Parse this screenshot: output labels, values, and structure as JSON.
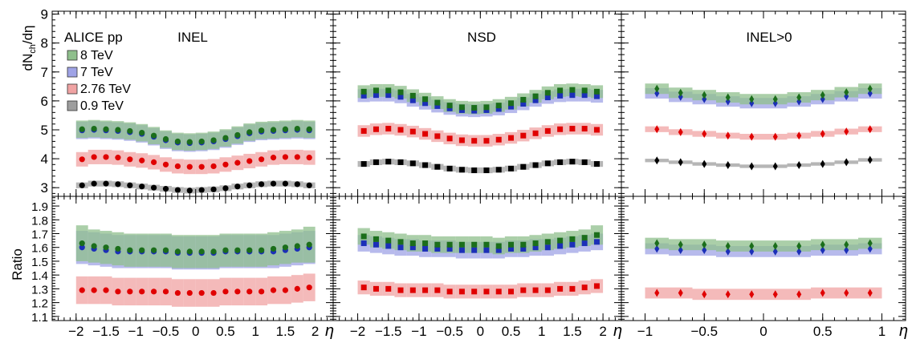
{
  "chart_data": {
    "type": "scatter",
    "experiment_label": "ALICE pp",
    "panels": [
      {
        "name": "INEL",
        "label": "INEL",
        "x_range": [
          -2.4,
          2.3
        ],
        "x_ticks": [
          -2,
          -1.5,
          -1,
          -0.5,
          0,
          0.5,
          1,
          1.5,
          2
        ],
        "x_tick_labels": [
          "−2",
          "−1.5",
          "−1",
          "−0.5",
          "0",
          "0.5",
          "1",
          "1.5",
          "2"
        ],
        "marker": "circle",
        "xlabel": "η"
      },
      {
        "name": "NSD",
        "label": "NSD",
        "x_range": [
          -2.4,
          2.3
        ],
        "x_ticks": [
          -2,
          -1.5,
          -1,
          -0.5,
          0,
          0.5,
          1,
          1.5,
          2
        ],
        "x_tick_labels": [
          "−2",
          "−1.5",
          "−1",
          "−0.5",
          "0",
          "0.5",
          "1",
          "1.5",
          "2"
        ],
        "marker": "square",
        "xlabel": "η"
      },
      {
        "name": "INEL>0",
        "label": "INEL>0",
        "x_range": [
          -1.2,
          1.2
        ],
        "x_ticks": [
          -1,
          -0.5,
          0,
          0.5,
          1
        ],
        "x_tick_labels": [
          "−1",
          "−0.5",
          "0",
          "0.5",
          "1"
        ],
        "marker": "diamond",
        "xlabel": "η"
      }
    ],
    "top": {
      "ylabel": "dN_ch/dη",
      "ylabel_main": "dN",
      "ylabel_sub": "ch",
      "ylabel_tail": "/dη",
      "ylim": [
        2.7,
        9.1
      ],
      "y_ticks": [
        3,
        4,
        5,
        6,
        7,
        8,
        9
      ],
      "y_tick_labels": [
        "3",
        "4",
        "5",
        "6",
        "7",
        "8",
        "9"
      ]
    },
    "bottom": {
      "ylabel": "Ratio",
      "ylim": [
        1.07,
        1.97
      ],
      "y_ticks": [
        1.1,
        1.2,
        1.3,
        1.4,
        1.5,
        1.6,
        1.7,
        1.8,
        1.9
      ],
      "y_tick_labels": [
        "1.1",
        "1.2",
        "1.3",
        "1.4",
        "1.5",
        "1.6",
        "1.7",
        "1.8",
        "1.9"
      ]
    },
    "legend": {
      "placement": "top-left of first panel",
      "entries": [
        {
          "key": "8tev",
          "label": "8 TeV",
          "color": "#8fbf8c"
        },
        {
          "key": "7tev",
          "label": "7 TeV",
          "color": "#9fa3e6"
        },
        {
          "key": "276tev",
          "label": "2.76 TeV",
          "color": "#f0a3a3"
        },
        {
          "key": "09tev",
          "label": "0.9 TeV",
          "color": "#9e9e9e"
        }
      ]
    },
    "series_style": {
      "8tev": {
        "marker_color": "#1b6e1b",
        "band_color": "#8fbf8c"
      },
      "7tev": {
        "marker_color": "#1c2fb8",
        "band_color": "#9fa3e6"
      },
      "276tev": {
        "marker_color": "#e00000",
        "band_color": "#f0a3a3"
      },
      "09tev": {
        "marker_color": "#000000",
        "band_color": "#9e9e9e"
      }
    },
    "eta_wide": [
      -1.9,
      -1.7,
      -1.5,
      -1.3,
      -1.1,
      -0.9,
      -0.7,
      -0.5,
      -0.3,
      -0.1,
      0.1,
      0.3,
      0.5,
      0.7,
      0.9,
      1.1,
      1.3,
      1.5,
      1.7,
      1.9
    ],
    "eta_narrow": [
      -0.9,
      -0.7,
      -0.5,
      -0.3,
      -0.1,
      0.1,
      0.3,
      0.5,
      0.7,
      0.9
    ],
    "series": [
      {
        "panel": 0,
        "row": "top",
        "key": "8tev",
        "values": [
          5.02,
          5.04,
          5.02,
          5.0,
          4.96,
          4.9,
          4.8,
          4.68,
          4.6,
          4.58,
          4.6,
          4.64,
          4.72,
          4.82,
          4.92,
          4.98,
          5.0,
          5.02,
          5.04,
          5.02
        ],
        "err": [
          0.3,
          0.3,
          0.3,
          0.3,
          0.3,
          0.3,
          0.3,
          0.3,
          0.3,
          0.3,
          0.3,
          0.3,
          0.3,
          0.3,
          0.3,
          0.3,
          0.3,
          0.3,
          0.3,
          0.3
        ]
      },
      {
        "panel": 0,
        "row": "top",
        "key": "7tev",
        "values": [
          4.98,
          5.0,
          4.98,
          4.96,
          4.92,
          4.86,
          4.76,
          4.64,
          4.56,
          4.54,
          4.56,
          4.6,
          4.68,
          4.78,
          4.88,
          4.94,
          4.96,
          4.98,
          5.0,
          4.98
        ],
        "err": [
          0.3,
          0.3,
          0.3,
          0.3,
          0.3,
          0.3,
          0.3,
          0.3,
          0.3,
          0.3,
          0.3,
          0.3,
          0.3,
          0.3,
          0.3,
          0.3,
          0.3,
          0.3,
          0.3,
          0.3
        ]
      },
      {
        "panel": 0,
        "row": "top",
        "key": "276tev",
        "values": [
          3.98,
          4.06,
          4.06,
          4.04,
          3.98,
          3.94,
          3.88,
          3.8,
          3.74,
          3.72,
          3.72,
          3.74,
          3.8,
          3.86,
          3.92,
          3.98,
          4.04,
          4.06,
          4.06,
          4.04
        ],
        "err": [
          0.25,
          0.25,
          0.25,
          0.25,
          0.25,
          0.25,
          0.25,
          0.25,
          0.25,
          0.25,
          0.25,
          0.25,
          0.25,
          0.25,
          0.25,
          0.25,
          0.25,
          0.25,
          0.25,
          0.25
        ]
      },
      {
        "panel": 0,
        "row": "top",
        "key": "09tev",
        "values": [
          3.08,
          3.14,
          3.14,
          3.12,
          3.08,
          3.04,
          3.0,
          2.96,
          2.92,
          2.9,
          2.92,
          2.94,
          2.98,
          3.04,
          3.08,
          3.12,
          3.14,
          3.14,
          3.12,
          3.08
        ],
        "err": [
          0.1,
          0.1,
          0.1,
          0.1,
          0.1,
          0.1,
          0.1,
          0.1,
          0.1,
          0.1,
          0.1,
          0.1,
          0.1,
          0.1,
          0.1,
          0.1,
          0.1,
          0.1,
          0.1,
          0.1
        ]
      },
      {
        "panel": 1,
        "row": "top",
        "key": "8tev",
        "values": [
          6.32,
          6.36,
          6.36,
          6.3,
          6.18,
          6.06,
          5.94,
          5.84,
          5.78,
          5.76,
          5.78,
          5.84,
          5.92,
          6.04,
          6.16,
          6.28,
          6.36,
          6.38,
          6.36,
          6.32
        ],
        "err": [
          0.22,
          0.22,
          0.22,
          0.22,
          0.22,
          0.22,
          0.22,
          0.22,
          0.22,
          0.22,
          0.22,
          0.22,
          0.22,
          0.22,
          0.22,
          0.22,
          0.22,
          0.22,
          0.22,
          0.22
        ]
      },
      {
        "panel": 1,
        "row": "top",
        "key": "7tev",
        "values": [
          6.18,
          6.2,
          6.2,
          6.14,
          6.02,
          5.92,
          5.82,
          5.74,
          5.68,
          5.66,
          5.68,
          5.72,
          5.8,
          5.9,
          6.02,
          6.12,
          6.18,
          6.2,
          6.2,
          6.16
        ],
        "err": [
          0.22,
          0.22,
          0.22,
          0.22,
          0.22,
          0.22,
          0.22,
          0.22,
          0.22,
          0.22,
          0.22,
          0.22,
          0.22,
          0.22,
          0.22,
          0.22,
          0.22,
          0.22,
          0.22,
          0.22
        ]
      },
      {
        "panel": 1,
        "row": "top",
        "key": "276tev",
        "values": [
          4.96,
          5.02,
          5.04,
          5.0,
          4.94,
          4.86,
          4.78,
          4.7,
          4.64,
          4.62,
          4.62,
          4.66,
          4.72,
          4.8,
          4.88,
          4.96,
          5.02,
          5.04,
          5.04,
          5.0
        ],
        "err": [
          0.2,
          0.2,
          0.2,
          0.2,
          0.2,
          0.2,
          0.2,
          0.2,
          0.2,
          0.2,
          0.2,
          0.2,
          0.2,
          0.2,
          0.2,
          0.2,
          0.2,
          0.2,
          0.2,
          0.2
        ]
      },
      {
        "panel": 1,
        "row": "top",
        "key": "09tev",
        "values": [
          3.82,
          3.88,
          3.9,
          3.88,
          3.84,
          3.78,
          3.72,
          3.66,
          3.62,
          3.6,
          3.6,
          3.62,
          3.66,
          3.72,
          3.78,
          3.84,
          3.88,
          3.9,
          3.88,
          3.82
        ],
        "err": [
          0.1,
          0.1,
          0.1,
          0.1,
          0.1,
          0.1,
          0.1,
          0.1,
          0.1,
          0.1,
          0.1,
          0.1,
          0.1,
          0.1,
          0.1,
          0.1,
          0.1,
          0.1,
          0.1,
          0.1
        ]
      },
      {
        "panel": 2,
        "row": "top",
        "key": "8tev",
        "values": [
          6.42,
          6.28,
          6.2,
          6.12,
          6.06,
          6.06,
          6.12,
          6.2,
          6.3,
          6.42
        ],
        "err": [
          0.18,
          0.18,
          0.18,
          0.18,
          0.18,
          0.18,
          0.18,
          0.18,
          0.18,
          0.18
        ]
      },
      {
        "panel": 2,
        "row": "top",
        "key": "7tev",
        "values": [
          6.26,
          6.14,
          6.06,
          5.98,
          5.92,
          5.92,
          5.98,
          6.06,
          6.16,
          6.26
        ],
        "err": [
          0.18,
          0.18,
          0.18,
          0.18,
          0.18,
          0.18,
          0.18,
          0.18,
          0.18,
          0.18
        ]
      },
      {
        "panel": 2,
        "row": "top",
        "key": "276tev",
        "values": [
          5.02,
          4.92,
          4.86,
          4.8,
          4.76,
          4.76,
          4.8,
          4.86,
          4.94,
          5.02
        ],
        "err": [
          0.1,
          0.1,
          0.1,
          0.1,
          0.1,
          0.1,
          0.1,
          0.1,
          0.1,
          0.1
        ]
      },
      {
        "panel": 2,
        "row": "top",
        "key": "09tev",
        "values": [
          3.94,
          3.88,
          3.82,
          3.78,
          3.74,
          3.74,
          3.78,
          3.82,
          3.88,
          3.96
        ],
        "err": [
          0.06,
          0.06,
          0.06,
          0.06,
          0.06,
          0.06,
          0.06,
          0.06,
          0.06,
          0.06
        ]
      },
      {
        "panel": 0,
        "row": "bottom",
        "key": "8tev",
        "values": [
          1.63,
          1.61,
          1.6,
          1.59,
          1.58,
          1.58,
          1.58,
          1.58,
          1.57,
          1.57,
          1.57,
          1.57,
          1.58,
          1.58,
          1.58,
          1.58,
          1.59,
          1.6,
          1.61,
          1.62
        ],
        "err": [
          0.13,
          0.12,
          0.12,
          0.12,
          0.12,
          0.12,
          0.12,
          0.12,
          0.12,
          0.12,
          0.12,
          0.12,
          0.12,
          0.12,
          0.12,
          0.12,
          0.12,
          0.12,
          0.12,
          0.13
        ]
      },
      {
        "panel": 0,
        "row": "bottom",
        "key": "7tev",
        "values": [
          1.6,
          1.59,
          1.58,
          1.57,
          1.57,
          1.57,
          1.57,
          1.57,
          1.56,
          1.56,
          1.56,
          1.56,
          1.57,
          1.57,
          1.57,
          1.57,
          1.57,
          1.58,
          1.59,
          1.6
        ],
        "err": [
          0.12,
          0.12,
          0.12,
          0.12,
          0.12,
          0.12,
          0.12,
          0.12,
          0.12,
          0.12,
          0.12,
          0.12,
          0.12,
          0.12,
          0.12,
          0.12,
          0.12,
          0.12,
          0.12,
          0.12
        ]
      },
      {
        "panel": 0,
        "row": "bottom",
        "key": "276tev",
        "values": [
          1.29,
          1.29,
          1.29,
          1.28,
          1.28,
          1.28,
          1.28,
          1.28,
          1.27,
          1.27,
          1.27,
          1.27,
          1.28,
          1.28,
          1.28,
          1.28,
          1.29,
          1.29,
          1.3,
          1.31
        ],
        "err": [
          0.1,
          0.1,
          0.1,
          0.1,
          0.1,
          0.1,
          0.1,
          0.1,
          0.1,
          0.1,
          0.1,
          0.1,
          0.1,
          0.1,
          0.1,
          0.1,
          0.1,
          0.1,
          0.1,
          0.1
        ]
      },
      {
        "panel": 1,
        "row": "bottom",
        "key": "8tev",
        "values": [
          1.68,
          1.66,
          1.65,
          1.64,
          1.63,
          1.63,
          1.62,
          1.62,
          1.62,
          1.62,
          1.62,
          1.61,
          1.62,
          1.62,
          1.63,
          1.64,
          1.65,
          1.66,
          1.67,
          1.69
        ],
        "err": [
          0.06,
          0.06,
          0.06,
          0.06,
          0.06,
          0.06,
          0.06,
          0.06,
          0.06,
          0.06,
          0.06,
          0.06,
          0.06,
          0.06,
          0.06,
          0.06,
          0.06,
          0.06,
          0.06,
          0.07
        ]
      },
      {
        "panel": 1,
        "row": "bottom",
        "key": "7tev",
        "values": [
          1.63,
          1.62,
          1.61,
          1.6,
          1.6,
          1.59,
          1.59,
          1.59,
          1.58,
          1.58,
          1.58,
          1.58,
          1.59,
          1.59,
          1.6,
          1.6,
          1.61,
          1.62,
          1.63,
          1.64
        ],
        "err": [
          0.06,
          0.06,
          0.06,
          0.06,
          0.06,
          0.06,
          0.06,
          0.06,
          0.06,
          0.06,
          0.06,
          0.06,
          0.06,
          0.06,
          0.06,
          0.06,
          0.06,
          0.06,
          0.06,
          0.06
        ]
      },
      {
        "panel": 1,
        "row": "bottom",
        "key": "276tev",
        "values": [
          1.31,
          1.3,
          1.3,
          1.29,
          1.29,
          1.29,
          1.29,
          1.28,
          1.28,
          1.28,
          1.28,
          1.28,
          1.28,
          1.29,
          1.29,
          1.29,
          1.3,
          1.3,
          1.31,
          1.32
        ],
        "err": [
          0.05,
          0.05,
          0.05,
          0.05,
          0.05,
          0.05,
          0.05,
          0.05,
          0.05,
          0.05,
          0.05,
          0.05,
          0.05,
          0.05,
          0.05,
          0.05,
          0.05,
          0.05,
          0.05,
          0.05
        ]
      },
      {
        "panel": 2,
        "row": "bottom",
        "key": "8tev",
        "values": [
          1.63,
          1.62,
          1.62,
          1.61,
          1.61,
          1.61,
          1.61,
          1.62,
          1.62,
          1.63
        ],
        "err": [
          0.04,
          0.04,
          0.04,
          0.04,
          0.04,
          0.04,
          0.04,
          0.04,
          0.04,
          0.04
        ]
      },
      {
        "panel": 2,
        "row": "bottom",
        "key": "7tev",
        "values": [
          1.59,
          1.58,
          1.58,
          1.57,
          1.57,
          1.57,
          1.57,
          1.58,
          1.58,
          1.59
        ],
        "err": [
          0.04,
          0.04,
          0.04,
          0.04,
          0.04,
          0.04,
          0.04,
          0.04,
          0.04,
          0.04
        ]
      },
      {
        "panel": 2,
        "row": "bottom",
        "key": "276tev",
        "values": [
          1.27,
          1.27,
          1.26,
          1.26,
          1.26,
          1.26,
          1.26,
          1.27,
          1.27,
          1.27
        ],
        "err": [
          0.04,
          0.04,
          0.04,
          0.04,
          0.04,
          0.04,
          0.04,
          0.04,
          0.04,
          0.04
        ]
      }
    ]
  }
}
